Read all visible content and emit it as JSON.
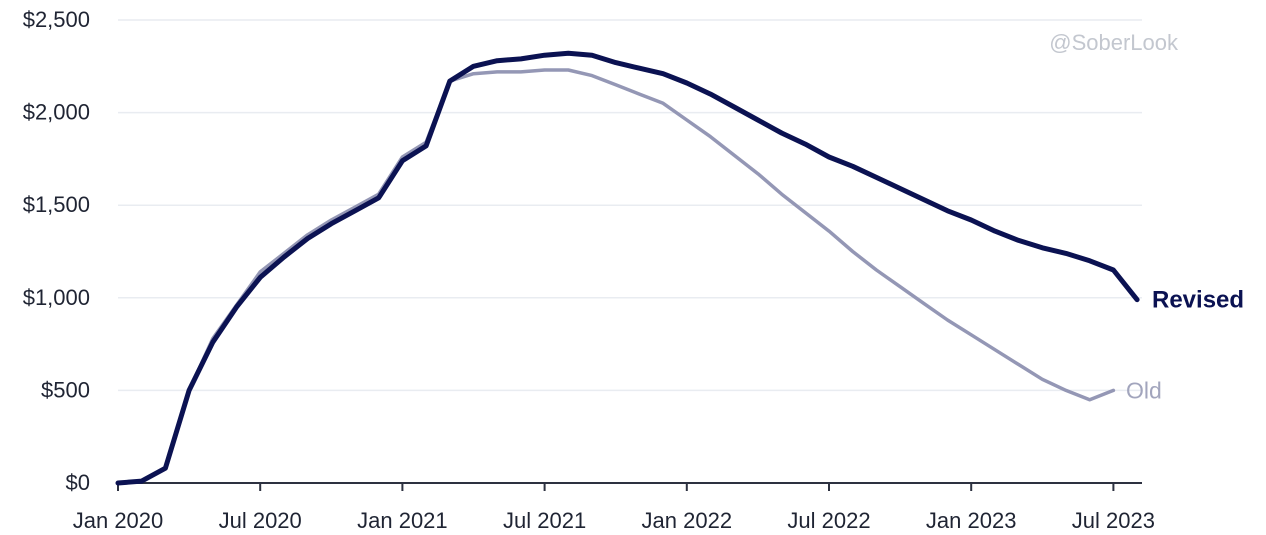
{
  "chart_data": {
    "type": "line",
    "x_tick_labels": [
      "Jan 2020",
      "Jul 2020",
      "Jan 2021",
      "Jul 2021",
      "Jan 2022",
      "Jul 2022",
      "Jan 2023",
      "Jul 2023"
    ],
    "y_tick_labels": [
      "$0",
      "$500",
      "$1,000",
      "$1,500",
      "$2,000",
      "$2,500"
    ],
    "y_ticks": [
      0,
      500,
      1000,
      1500,
      2000,
      2500
    ],
    "ylim": [
      0,
      2500
    ],
    "xlim": [
      "2020-01",
      "2023-08"
    ],
    "grid": true,
    "watermark": "@SoberLook",
    "series": [
      {
        "name": "Revised",
        "color": "#0b1252",
        "x": [
          "2020-01",
          "2020-02",
          "2020-03",
          "2020-04",
          "2020-05",
          "2020-06",
          "2020-07",
          "2020-08",
          "2020-09",
          "2020-10",
          "2020-11",
          "2020-12",
          "2021-01",
          "2021-02",
          "2021-03",
          "2021-04",
          "2021-05",
          "2021-06",
          "2021-07",
          "2021-08",
          "2021-09",
          "2021-10",
          "2021-11",
          "2021-12",
          "2022-01",
          "2022-02",
          "2022-03",
          "2022-04",
          "2022-05",
          "2022-06",
          "2022-07",
          "2022-08",
          "2022-09",
          "2022-10",
          "2022-11",
          "2022-12",
          "2023-01",
          "2023-02",
          "2023-03",
          "2023-04",
          "2023-05",
          "2023-06",
          "2023-07",
          "2023-08"
        ],
        "values": [
          0,
          10,
          80,
          500,
          760,
          950,
          1110,
          1220,
          1320,
          1400,
          1470,
          1540,
          1740,
          1820,
          2170,
          2250,
          2280,
          2290,
          2310,
          2320,
          2310,
          2270,
          2240,
          2210,
          2160,
          2100,
          2030,
          1960,
          1890,
          1830,
          1760,
          1710,
          1650,
          1590,
          1530,
          1470,
          1420,
          1360,
          1310,
          1270,
          1240,
          1200,
          1150,
          990
        ]
      },
      {
        "name": "Old",
        "color": "#9497b5",
        "x": [
          "2020-01",
          "2020-02",
          "2020-03",
          "2020-04",
          "2020-05",
          "2020-06",
          "2020-07",
          "2020-08",
          "2020-09",
          "2020-10",
          "2020-11",
          "2020-12",
          "2021-01",
          "2021-02",
          "2021-03",
          "2021-04",
          "2021-05",
          "2021-06",
          "2021-07",
          "2021-08",
          "2021-09",
          "2021-10",
          "2021-11",
          "2021-12",
          "2022-01",
          "2022-02",
          "2022-03",
          "2022-04",
          "2022-05",
          "2022-06",
          "2022-07",
          "2022-08",
          "2022-09",
          "2022-10",
          "2022-11",
          "2022-12",
          "2023-01",
          "2023-02",
          "2023-03",
          "2023-04",
          "2023-05",
          "2023-06",
          "2023-07"
        ],
        "values": [
          0,
          10,
          80,
          500,
          780,
          960,
          1140,
          1240,
          1340,
          1420,
          1490,
          1560,
          1760,
          1840,
          2170,
          2210,
          2220,
          2220,
          2230,
          2230,
          2200,
          2150,
          2100,
          2050,
          1960,
          1870,
          1770,
          1670,
          1560,
          1460,
          1360,
          1250,
          1150,
          1060,
          970,
          880,
          800,
          720,
          640,
          560,
          500,
          450,
          500
        ]
      }
    ]
  }
}
